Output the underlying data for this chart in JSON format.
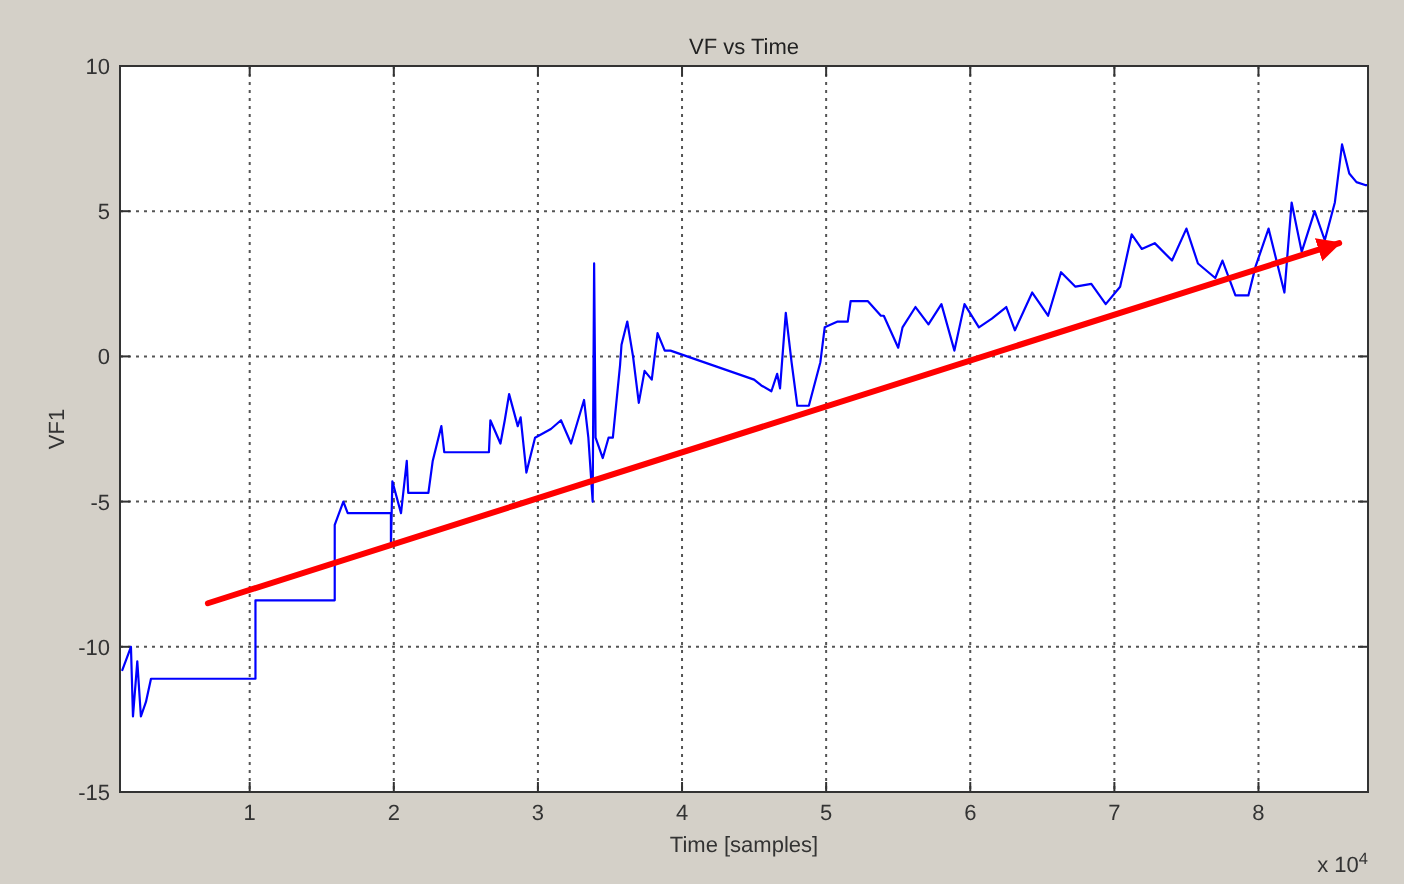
{
  "chart_data": {
    "type": "line",
    "title": "VF vs Time",
    "xlabel": "Time [samples]",
    "ylabel": "VF1",
    "annotations": [
      "x 10$^{4}$"
    ],
    "xlim": [
      0.1,
      8.76
    ],
    "ylim": [
      -15,
      10
    ],
    "xticks": [
      1,
      2,
      3,
      4,
      5,
      6,
      7,
      8
    ],
    "yticks": [
      -15,
      -10,
      -5,
      0,
      5,
      10
    ],
    "grid": true,
    "line_style": "solid",
    "series": [
      {
        "color": "#0000ff",
        "x": [
          0.116,
          0.176,
          0.19,
          0.22,
          0.245,
          0.28,
          0.315,
          1.04,
          1.04,
          1.59,
          1.59,
          1.65,
          1.68,
          1.98,
          1.98,
          1.99,
          2.05,
          2.09,
          2.1,
          2.24,
          2.27,
          2.33,
          2.35,
          2.66,
          2.67,
          2.74,
          2.77,
          2.8,
          2.86,
          2.88,
          2.92,
          2.98,
          3.09,
          3.16,
          3.23,
          3.32,
          3.35,
          3.38,
          3.39,
          3.4,
          3.45,
          3.49,
          3.52,
          3.57,
          3.57,
          3.58,
          3.62,
          3.66,
          3.7,
          3.74,
          3.79,
          3.83,
          3.88,
          3.92,
          4.5,
          4.55,
          4.62,
          4.66,
          4.68,
          4.72,
          4.76,
          4.8,
          4.88,
          4.96,
          4.99,
          5.08,
          5.15,
          5.17,
          5.29,
          5.38,
          5.4,
          5.5,
          5.53,
          5.62,
          5.71,
          5.8,
          5.89,
          5.96,
          6.06,
          6.15,
          6.25,
          6.31,
          6.43,
          6.54,
          6.63,
          6.73,
          6.84,
          6.94,
          7.04,
          7.12,
          7.19,
          7.28,
          7.4,
          7.5,
          7.58,
          7.7,
          7.75,
          7.84,
          7.93,
          7.98,
          8.07,
          8.18,
          8.23,
          8.3,
          8.39,
          8.46,
          8.53,
          8.58,
          8.63,
          8.68,
          8.74,
          8.76
        ],
        "values": [
          -10.8,
          -10,
          -12.4,
          -10.5,
          -12.4,
          -11.9,
          -11.1,
          -11.1,
          -8.4,
          -8.4,
          -5.8,
          -5,
          -5.4,
          -5.4,
          -6.5,
          -4.3,
          -5.4,
          -3.6,
          -4.7,
          -4.7,
          -3.6,
          -2.4,
          -3.3,
          -3.3,
          -2.2,
          -3,
          -2.2,
          -1.3,
          -2.4,
          -2.1,
          -4,
          -2.8,
          -2.5,
          -2.2,
          -3,
          -1.5,
          -2.8,
          -5,
          3.2,
          -2.8,
          -3.5,
          -2.8,
          -2.8,
          -0.3,
          -0.3,
          0.4,
          1.2,
          0,
          -1.6,
          -0.5,
          -0.8,
          0.8,
          0.2,
          0.2,
          -0.8,
          -1,
          -1.2,
          -0.6,
          -1.1,
          1.5,
          -0.2,
          -1.7,
          -1.7,
          -0.2,
          1,
          1.2,
          1.2,
          1.9,
          1.9,
          1.4,
          1.4,
          0.3,
          1,
          1.7,
          1.1,
          1.8,
          0.2,
          1.8,
          1,
          1.3,
          1.7,
          0.9,
          2.2,
          1.4,
          2.9,
          2.4,
          2.5,
          1.8,
          2.4,
          4.2,
          3.7,
          3.9,
          3.3,
          4.4,
          3.2,
          2.7,
          3.3,
          2.1,
          2.1,
          3.1,
          4.4,
          2.2,
          5.3,
          3.6,
          5,
          4,
          5.3,
          7.3,
          6.3,
          6,
          5.9,
          5.9
        ]
      },
      {
        "type": "line",
        "color": "#ff0000",
        "x": [
          0.71,
          8.56
        ],
        "values": [
          -8.5,
          3.9
        ]
      }
    ]
  }
}
